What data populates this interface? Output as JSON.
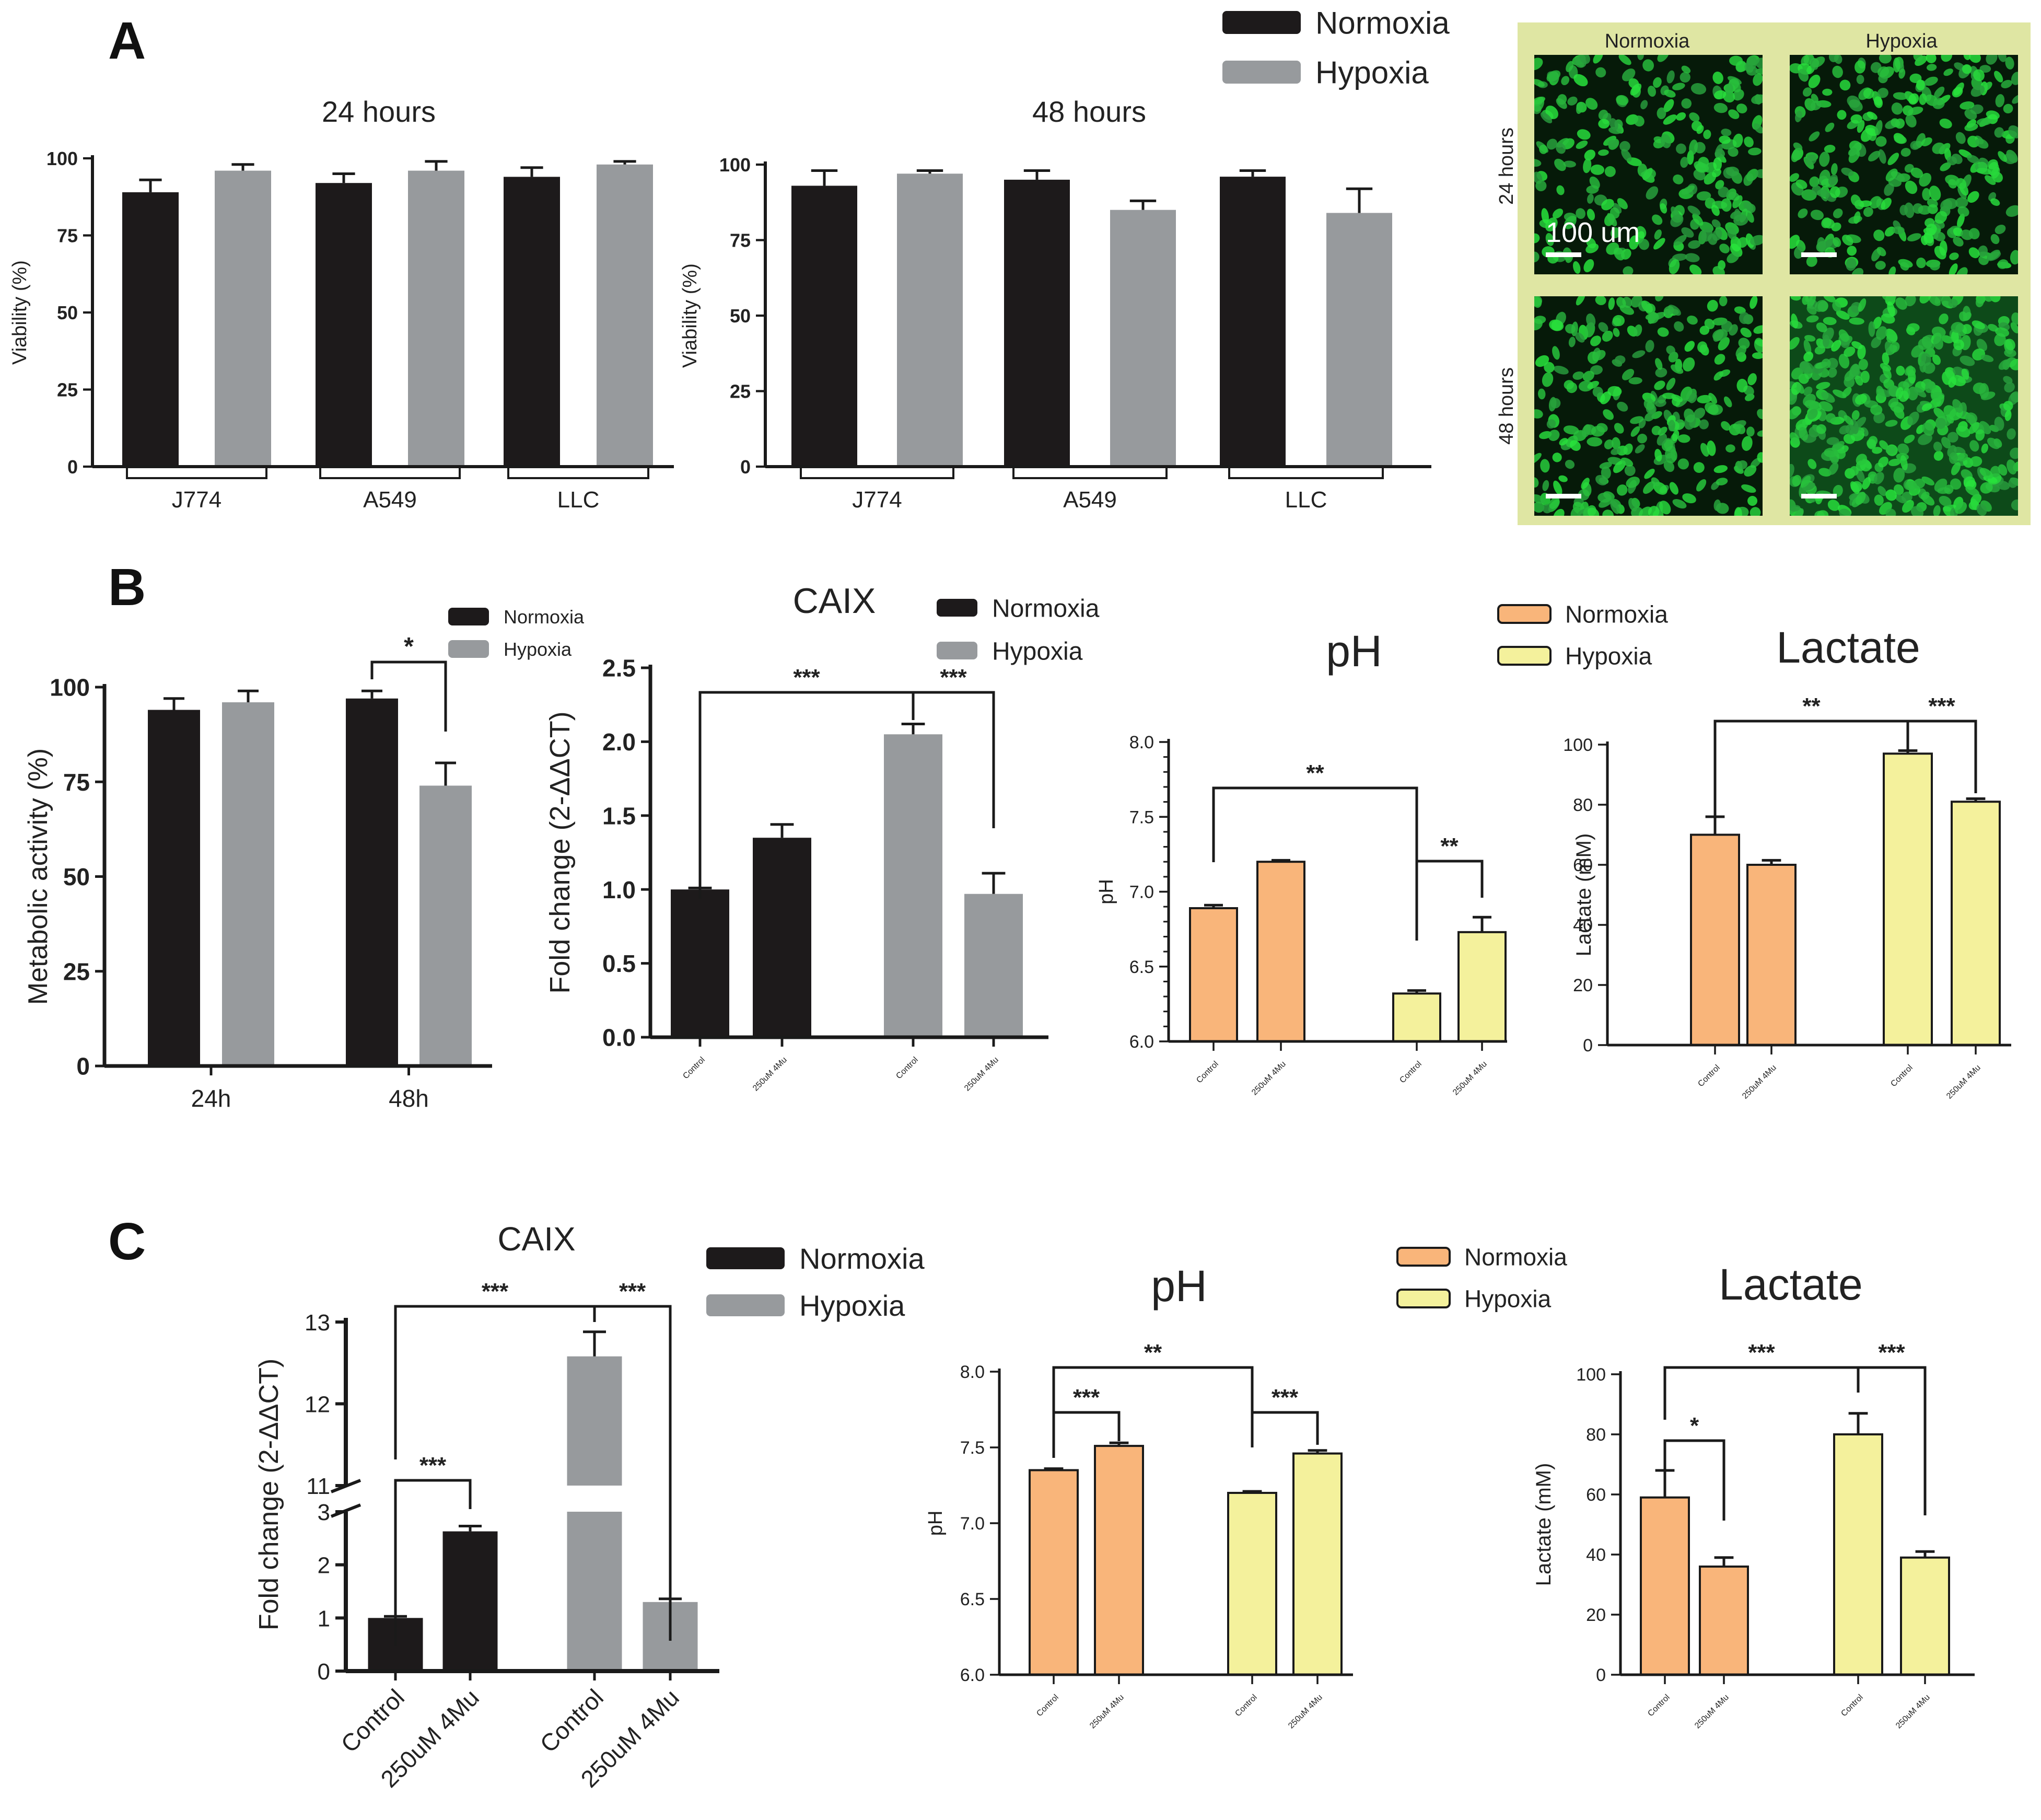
{
  "panel_labels": [
    "A",
    "B",
    "C"
  ],
  "micrograph": {
    "columns": [
      "Normoxia",
      "Hypoxia"
    ],
    "rows": [
      "24 hours",
      "48 hours"
    ],
    "scale_bar": "100 um"
  },
  "legends": {
    "A": [
      "Normoxia",
      "Hypoxia"
    ],
    "B_metabolic": [
      "Normoxia",
      "Hypoxia"
    ],
    "B_caix": [
      "Normoxia",
      "Hypoxia"
    ],
    "B_ph_lactate": [
      "Normoxia",
      "Hypoxia"
    ],
    "C_caix": [
      "Normoxia",
      "Hypoxia"
    ],
    "C_ph_lactate": [
      "Normoxia",
      "Hypoxia"
    ]
  },
  "colors": {
    "normoxia_dark": "#1d1a1b",
    "hypoxia_grey": "#979a9d",
    "normoxia_orange": "#f9b57a",
    "hypoxia_yellow": "#f4f19c",
    "micro_frame": "#dfe6a3",
    "micro_cells": "#2fb845"
  },
  "chart_data": [
    {
      "id": "A-24h",
      "type": "bar",
      "title": "24 hours",
      "ylabel": "Viability (%)",
      "ylim": [
        0,
        100
      ],
      "yticks": [
        0,
        25,
        50,
        75,
        100
      ],
      "categories": [
        "J774",
        "A549",
        "LLC"
      ],
      "series": [
        {
          "name": "Normoxia",
          "values": [
            89,
            92,
            94
          ],
          "errors": [
            4,
            3,
            3
          ]
        },
        {
          "name": "Hypoxia",
          "values": [
            96,
            96,
            98
          ],
          "errors": [
            2,
            3,
            1
          ]
        }
      ]
    },
    {
      "id": "A-48h",
      "type": "bar",
      "title": "48 hours",
      "ylabel": "Viability (%)",
      "ylim": [
        0,
        100
      ],
      "yticks": [
        0,
        25,
        50,
        75,
        100
      ],
      "categories": [
        "J774",
        "A549",
        "LLC"
      ],
      "series": [
        {
          "name": "Normoxia",
          "values": [
            93,
            95,
            96
          ],
          "errors": [
            5,
            3,
            2
          ]
        },
        {
          "name": "Hypoxia",
          "values": [
            97,
            85,
            84
          ],
          "errors": [
            1,
            3,
            8
          ]
        }
      ]
    },
    {
      "id": "B-metabolic",
      "type": "bar",
      "title": "",
      "ylabel": "Metabolic activity (%)",
      "ylim": [
        0,
        100
      ],
      "yticks": [
        0,
        25,
        50,
        75,
        100
      ],
      "categories": [
        "24h",
        "48h"
      ],
      "series": [
        {
          "name": "Normoxia",
          "values": [
            94,
            97
          ],
          "errors": [
            3,
            2
          ]
        },
        {
          "name": "Hypoxia",
          "values": [
            96,
            74
          ],
          "errors": [
            3,
            6
          ]
        }
      ],
      "annotations": [
        {
          "label": "*",
          "from": "48h Normoxia",
          "to": "48h Hypoxia"
        }
      ]
    },
    {
      "id": "B-CAIX",
      "type": "bar",
      "title": "CAIX",
      "ylabel": "Fold change (2-ΔΔCT)",
      "ylim": [
        0,
        2.5
      ],
      "yticks": [
        0.0,
        0.5,
        1.0,
        1.5,
        2.0,
        2.5
      ],
      "categories": [
        "Control",
        "250uM 4Mu",
        "Control",
        "250uM 4Mu"
      ],
      "groups": [
        "Normoxia",
        "Normoxia",
        "Hypoxia",
        "Hypoxia"
      ],
      "values": [
        1.0,
        1.35,
        2.05,
        0.97
      ],
      "errors": [
        0.01,
        0.09,
        0.07,
        0.14
      ],
      "annotations": [
        {
          "label": "***",
          "from": "Normoxia Control",
          "to": "Hypoxia Control"
        },
        {
          "label": "***",
          "from": "Hypoxia Control",
          "to": "Hypoxia 250uM 4Mu"
        }
      ]
    },
    {
      "id": "B-pH",
      "type": "bar",
      "title": "pH",
      "ylabel": "pH",
      "ylim": [
        6.0,
        8.0
      ],
      "yticks": [
        6.0,
        6.5,
        7.0,
        7.5,
        8.0
      ],
      "categories": [
        "Control",
        "250uM 4Mu",
        "Control",
        "250uM 4Mu"
      ],
      "groups": [
        "Normoxia",
        "Normoxia",
        "Hypoxia",
        "Hypoxia"
      ],
      "values": [
        6.89,
        7.2,
        6.32,
        6.73
      ],
      "errors": [
        0.02,
        0.01,
        0.02,
        0.1
      ],
      "annotations": [
        {
          "label": "**",
          "from": "Normoxia Control",
          "to": "Hypoxia Control"
        },
        {
          "label": "**",
          "from": "Hypoxia Control",
          "to": "Hypoxia 250uM 4Mu"
        }
      ]
    },
    {
      "id": "B-Lactate",
      "type": "bar",
      "title": "Lactate",
      "ylabel": "Lactate (mM)",
      "ylim": [
        0,
        100
      ],
      "yticks": [
        0,
        20,
        40,
        60,
        80,
        100
      ],
      "categories": [
        "Control",
        "250uM 4Mu",
        "Control",
        "250uM 4Mu"
      ],
      "groups": [
        "Normoxia",
        "Normoxia",
        "Hypoxia",
        "Hypoxia"
      ],
      "values": [
        70,
        60,
        97,
        81
      ],
      "errors": [
        6,
        1.5,
        1,
        1
      ],
      "annotations": [
        {
          "label": "**",
          "from": "Normoxia Control",
          "to": "Hypoxia Control"
        },
        {
          "label": "***",
          "from": "Hypoxia Control",
          "to": "Hypoxia 250uM 4Mu"
        }
      ]
    },
    {
      "id": "C-CAIX",
      "type": "bar",
      "title": "CAIX",
      "ylabel": "Fold change (2-ΔΔCT)",
      "broken_axis": {
        "lower": [
          0,
          3
        ],
        "upper": [
          11,
          13
        ]
      },
      "yticks": [
        0,
        1,
        2,
        3,
        11,
        12,
        13
      ],
      "categories": [
        "Control",
        "250uM 4Mu",
        "Control",
        "250uM 4Mu"
      ],
      "groups": [
        "Normoxia",
        "Normoxia",
        "Hypoxia",
        "Hypoxia"
      ],
      "values": [
        1.0,
        2.63,
        12.58,
        1.3
      ],
      "errors": [
        0.03,
        0.1,
        0.3,
        0.06
      ],
      "annotations": [
        {
          "label": "***",
          "from": "Normoxia Control",
          "to": "Hypoxia Control"
        },
        {
          "label": "***",
          "from": "Normoxia Control",
          "to": "Normoxia 250uM 4Mu"
        },
        {
          "label": "***",
          "from": "Hypoxia Control",
          "to": "Hypoxia 250uM 4Mu"
        }
      ]
    },
    {
      "id": "C-pH",
      "type": "bar",
      "title": "pH",
      "ylabel": "pH",
      "ylim": [
        6.0,
        8.0
      ],
      "yticks": [
        6.0,
        6.5,
        7.0,
        7.5,
        8.0
      ],
      "categories": [
        "Control",
        "250uM 4Mu",
        "Control",
        "250uM 4Mu"
      ],
      "groups": [
        "Normoxia",
        "Normoxia",
        "Hypoxia",
        "Hypoxia"
      ],
      "values": [
        7.35,
        7.51,
        7.2,
        7.46
      ],
      "errors": [
        0.01,
        0.02,
        0.01,
        0.02
      ],
      "annotations": [
        {
          "label": "**",
          "from": "Normoxia Control",
          "to": "Hypoxia Control"
        },
        {
          "label": "***",
          "from": "Normoxia Control",
          "to": "Normoxia 250uM 4Mu"
        },
        {
          "label": "***",
          "from": "Hypoxia Control",
          "to": "Hypoxia 250uM 4Mu"
        }
      ]
    },
    {
      "id": "C-Lactate",
      "type": "bar",
      "title": "Lactate",
      "ylabel": "Lactate (mM)",
      "ylim": [
        0,
        100
      ],
      "yticks": [
        0,
        20,
        40,
        60,
        80,
        100
      ],
      "categories": [
        "Control",
        "250uM 4Mu",
        "Control",
        "250uM 4Mu"
      ],
      "groups": [
        "Normoxia",
        "Normoxia",
        "Hypoxia",
        "Hypoxia"
      ],
      "values": [
        59,
        36,
        80,
        39
      ],
      "errors": [
        9,
        3,
        7,
        2
      ],
      "annotations": [
        {
          "label": "***",
          "from": "Normoxia Control",
          "to": "Hypoxia Control"
        },
        {
          "label": "*",
          "from": "Normoxia Control",
          "to": "Normoxia 250uM 4Mu"
        },
        {
          "label": "***",
          "from": "Hypoxia Control",
          "to": "Hypoxia 250uM 4Mu"
        }
      ]
    }
  ]
}
